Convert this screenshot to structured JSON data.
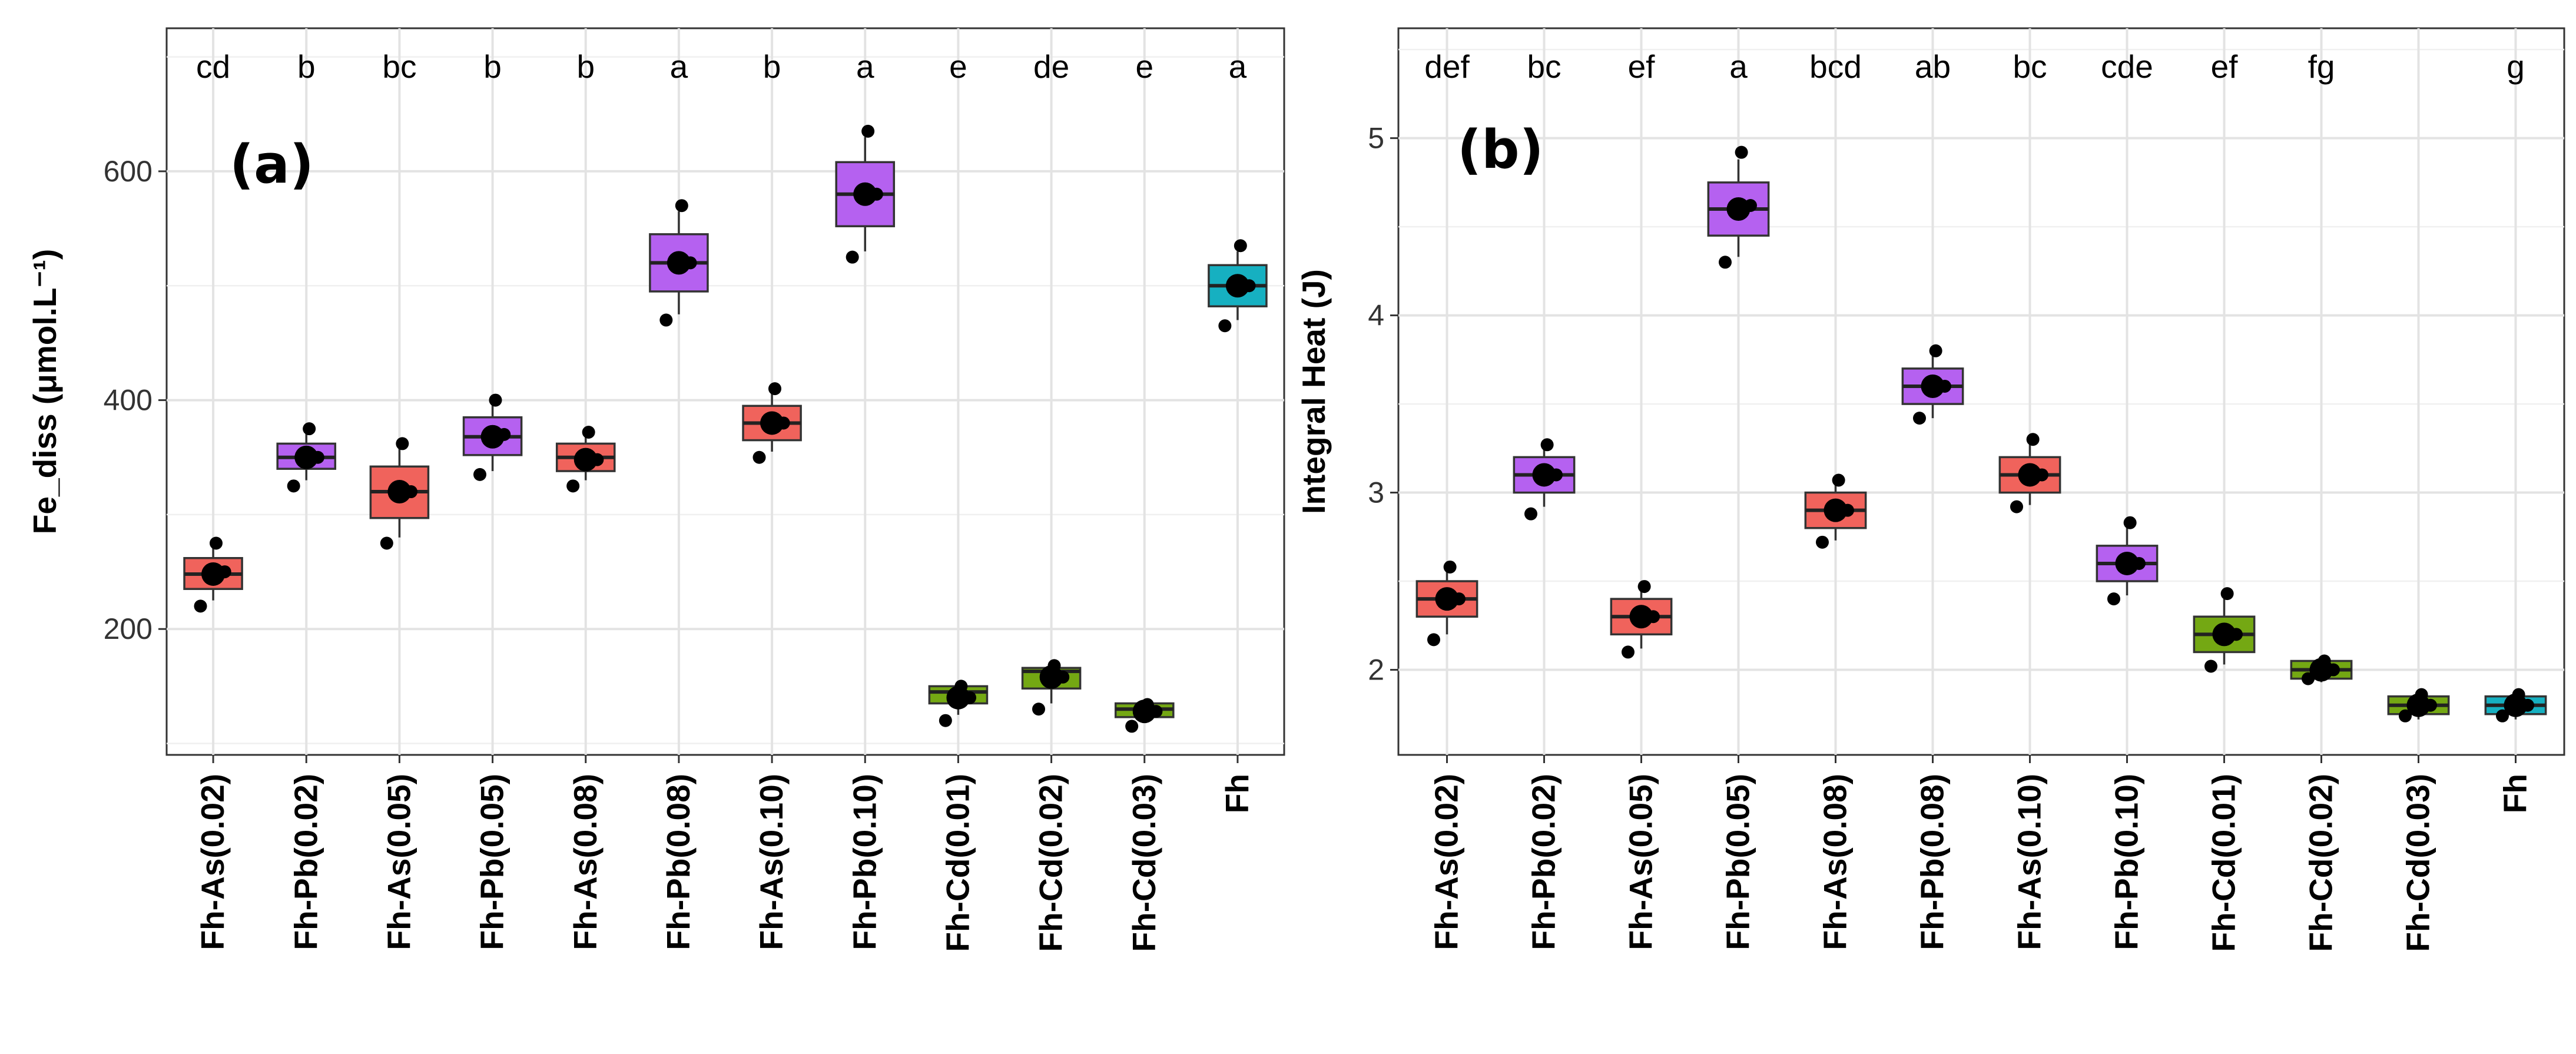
{
  "colors": {
    "As": "#f0635c",
    "Pb": "#b561f0",
    "Cd": "#74a813",
    "Fh": "#16b0c1"
  },
  "chart_data": [
    {
      "type": "box",
      "panel_label": "(a)",
      "title": "",
      "xlabel": "",
      "ylabel": "Fe_diss (μmol.L⁻¹)",
      "ylim": [
        90,
        725
      ],
      "yticks": [
        200,
        400,
        600
      ],
      "categories": [
        "Fh-As(0.02)",
        "Fh-Pb(0.02)",
        "Fh-As(0.05)",
        "Fh-Pb(0.05)",
        "Fh-As(0.08)",
        "Fh-Pb(0.08)",
        "Fh-As(0.10)",
        "Fh-Pb(0.10)",
        "Fh-Cd(0.01)",
        "Fh-Cd(0.02)",
        "Fh-Cd(0.03)",
        "Fh"
      ],
      "groups": [
        "As",
        "Pb",
        "As",
        "Pb",
        "As",
        "Pb",
        "As",
        "Pb",
        "Cd",
        "Cd",
        "Cd",
        "Fh"
      ],
      "letters": [
        "cd",
        "b",
        "bc",
        "b",
        "b",
        "a",
        "b",
        "a",
        "e",
        "de",
        "e",
        "a"
      ],
      "series": [
        {
          "q1": 235,
          "median": 248,
          "q3": 262,
          "min": 225,
          "max": 272,
          "mean": 248,
          "points": [
            220,
            250,
            275
          ]
        },
        {
          "q1": 340,
          "median": 350,
          "q3": 362,
          "min": 330,
          "max": 372,
          "mean": 350,
          "points": [
            325,
            350,
            375
          ]
        },
        {
          "q1": 297,
          "median": 320,
          "q3": 342,
          "min": 280,
          "max": 360,
          "mean": 320,
          "points": [
            275,
            320,
            362
          ]
        },
        {
          "q1": 352,
          "median": 368,
          "q3": 385,
          "min": 338,
          "max": 398,
          "mean": 368,
          "points": [
            335,
            370,
            400
          ]
        },
        {
          "q1": 338,
          "median": 350,
          "q3": 362,
          "min": 330,
          "max": 370,
          "mean": 348,
          "points": [
            325,
            348,
            372
          ]
        },
        {
          "q1": 495,
          "median": 520,
          "q3": 545,
          "min": 475,
          "max": 565,
          "mean": 520,
          "points": [
            470,
            520,
            570
          ]
        },
        {
          "q1": 365,
          "median": 380,
          "q3": 395,
          "min": 355,
          "max": 408,
          "mean": 380,
          "points": [
            350,
            380,
            410
          ]
        },
        {
          "q1": 552,
          "median": 580,
          "q3": 608,
          "min": 530,
          "max": 630,
          "mean": 580,
          "points": [
            525,
            580,
            635
          ]
        },
        {
          "q1": 135,
          "median": 145,
          "q3": 150,
          "min": 125,
          "max": 152,
          "mean": 140,
          "points": [
            120,
            140,
            150
          ]
        },
        {
          "q1": 148,
          "median": 163,
          "q3": 166,
          "min": 135,
          "max": 170,
          "mean": 158,
          "points": [
            130,
            158,
            168
          ]
        },
        {
          "q1": 123,
          "median": 130,
          "q3": 135,
          "min": 118,
          "max": 137,
          "mean": 128,
          "points": [
            115,
            128,
            134
          ]
        },
        {
          "q1": 482,
          "median": 500,
          "q3": 518,
          "min": 470,
          "max": 530,
          "mean": 500,
          "points": [
            465,
            500,
            535
          ]
        }
      ]
    },
    {
      "type": "box",
      "panel_label": "(b)",
      "title": "",
      "xlabel": "",
      "ylabel": "Integral Heat (J)",
      "ylim": [
        1.52,
        5.62
      ],
      "yticks": [
        2,
        3,
        4,
        5
      ],
      "categories": [
        "Fh-As(0.02)",
        "Fh-Pb(0.02)",
        "Fh-As(0.05)",
        "Fh-Pb(0.05)",
        "Fh-As(0.08)",
        "Fh-Pb(0.08)",
        "Fh-As(0.10)",
        "Fh-Pb(0.10)",
        "Fh-Cd(0.01)",
        "Fh-Cd(0.02)",
        "Fh-Cd(0.03)",
        "Fh"
      ],
      "groups": [
        "As",
        "Pb",
        "As",
        "Pb",
        "As",
        "Pb",
        "As",
        "Pb",
        "Cd",
        "Cd",
        "Cd",
        "Fh"
      ],
      "letters": [
        "def",
        "bc",
        "ef",
        "a",
        "bcd",
        "ab",
        "bc",
        "cde",
        "ef",
        "fg",
        "",
        "g"
      ],
      "series": [
        {
          "q1": 2.3,
          "median": 2.4,
          "q3": 2.5,
          "min": 2.2,
          "max": 2.58,
          "mean": 2.4,
          "points": [
            2.17,
            2.4,
            2.58
          ]
        },
        {
          "q1": 3.0,
          "median": 3.1,
          "q3": 3.2,
          "min": 2.92,
          "max": 3.27,
          "mean": 3.1,
          "points": [
            2.88,
            3.1,
            3.27
          ]
        },
        {
          "q1": 2.2,
          "median": 2.3,
          "q3": 2.4,
          "min": 2.12,
          "max": 2.47,
          "mean": 2.3,
          "points": [
            2.1,
            2.3,
            2.47
          ]
        },
        {
          "q1": 4.45,
          "median": 4.6,
          "q3": 4.75,
          "min": 4.33,
          "max": 4.88,
          "mean": 4.6,
          "points": [
            4.3,
            4.62,
            4.92
          ]
        },
        {
          "q1": 2.8,
          "median": 2.9,
          "q3": 3.0,
          "min": 2.73,
          "max": 3.07,
          "mean": 2.9,
          "points": [
            2.72,
            2.9,
            3.07
          ]
        },
        {
          "q1": 3.5,
          "median": 3.6,
          "q3": 3.7,
          "min": 3.42,
          "max": 3.8,
          "mean": 3.6,
          "points": [
            3.42,
            3.6,
            3.8
          ]
        },
        {
          "q1": 3.0,
          "median": 3.1,
          "q3": 3.2,
          "min": 2.93,
          "max": 3.3,
          "mean": 3.1,
          "points": [
            2.92,
            3.1,
            3.3
          ]
        },
        {
          "q1": 2.5,
          "median": 2.6,
          "q3": 2.7,
          "min": 2.42,
          "max": 2.8,
          "mean": 2.6,
          "points": [
            2.4,
            2.6,
            2.83
          ]
        },
        {
          "q1": 2.1,
          "median": 2.2,
          "q3": 2.3,
          "min": 2.03,
          "max": 2.4,
          "mean": 2.2,
          "points": [
            2.02,
            2.2,
            2.43
          ]
        },
        {
          "q1": 1.95,
          "median": 2.0,
          "q3": 2.05,
          "min": 1.93,
          "max": 2.07,
          "mean": 2.0,
          "points": [
            1.95,
            2.0,
            2.05
          ]
        },
        {
          "q1": 1.75,
          "median": 1.8,
          "q3": 1.85,
          "min": 1.72,
          "max": 1.87,
          "mean": 1.8,
          "points": [
            1.74,
            1.8,
            1.86
          ]
        },
        {
          "q1": 1.75,
          "median": 1.8,
          "q3": 1.85,
          "min": 1.72,
          "max": 1.87,
          "mean": 1.8,
          "points": [
            1.74,
            1.8,
            1.86
          ]
        }
      ]
    }
  ]
}
